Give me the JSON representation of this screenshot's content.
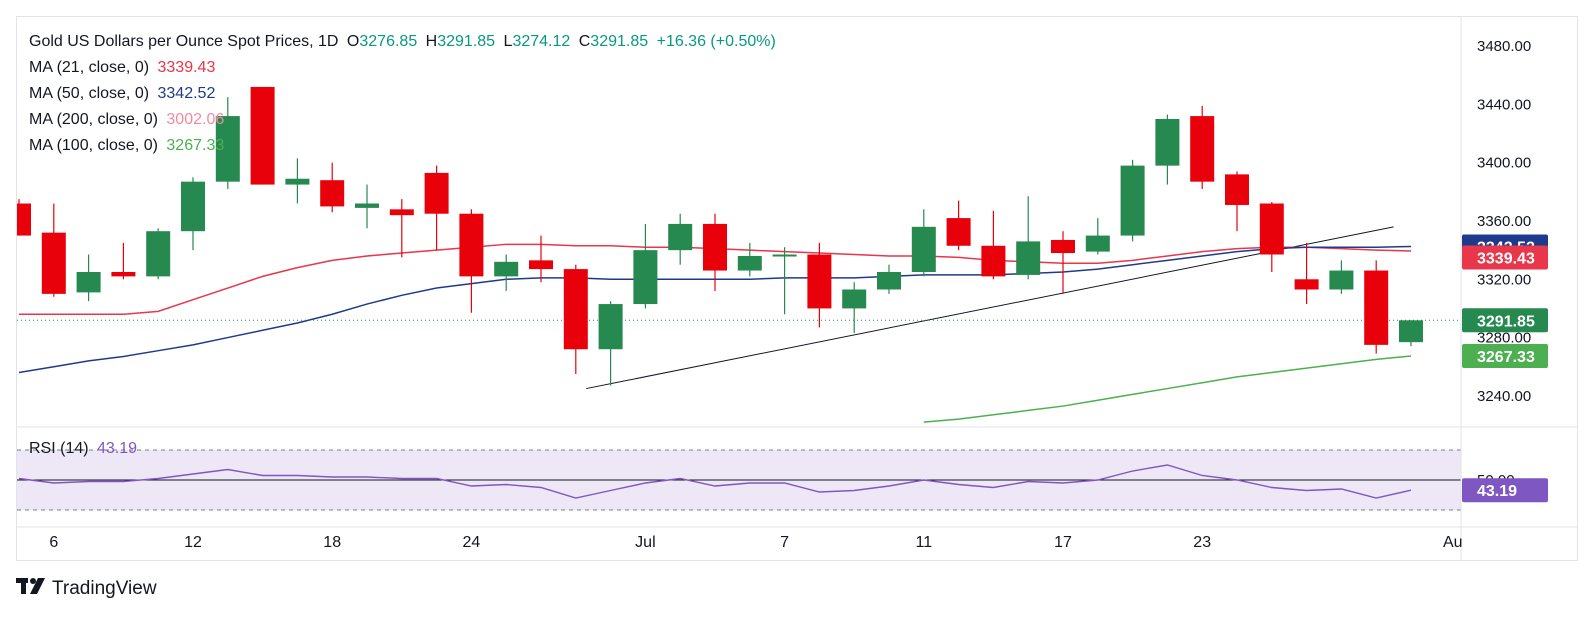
{
  "legend": {
    "symbol": "Gold US Dollars per Ounce Spot Prices, 1D",
    "open_label": "O",
    "open": "3276.85",
    "high_label": "H",
    "high": "3291.85",
    "low_label": "L",
    "low": "3274.12",
    "close_label": "C",
    "close": "3291.85",
    "change": "+16.36 (+0.50%)",
    "ma21_label": "MA (21, close, 0)",
    "ma21_value": "3339.43",
    "ma50_label": "MA (50, close, 0)",
    "ma50_value": "3342.52",
    "ma200_label": "MA (200, close, 0)",
    "ma200_value": "3002.06",
    "ma100_label": "MA (100, close, 0)",
    "ma100_value": "3267.33"
  },
  "rsi_legend": {
    "label": "RSI (14)",
    "value": "43.19"
  },
  "branding": {
    "name": "TradingView"
  },
  "colors": {
    "up": "#26894f",
    "down": "#e8000b",
    "ma21": "#e8364a",
    "ma50": "#1e3a8c",
    "ma200": "#f28b9f",
    "ma100": "#4caf50",
    "rsi": "#7e57c2",
    "rsi_band": "#ede7f6",
    "last_price": "#26894f"
  },
  "chart_data": [
    {
      "type": "candlestick",
      "title": "Gold US Dollars per Ounce Spot Prices, 1D",
      "ylim": [
        3220,
        3500
      ],
      "y_ticks": [
        "3480.00",
        "3440.00",
        "3400.00",
        "3360.00",
        "3320.00",
        "3280.00",
        "3240.00"
      ],
      "x_labels": [
        "6",
        "12",
        "18",
        "24",
        "Jul",
        "7",
        "11",
        "17",
        "23",
        "Au"
      ],
      "grid": false,
      "candles": [
        {
          "date": "Jun 5",
          "o": 3372,
          "h": 3375,
          "l": 3350,
          "c": 3350
        },
        {
          "date": "Jun 6",
          "o": 3352,
          "h": 3372,
          "l": 3308,
          "c": 3310
        },
        {
          "date": "Jun 9",
          "o": 3311,
          "h": 3337,
          "l": 3305,
          "c": 3325
        },
        {
          "date": "Jun 10",
          "o": 3325,
          "h": 3345,
          "l": 3320,
          "c": 3322
        },
        {
          "date": "Jun 11",
          "o": 3322,
          "h": 3355,
          "l": 3320,
          "c": 3353
        },
        {
          "date": "Jun 12",
          "o": 3353,
          "h": 3390,
          "l": 3340,
          "c": 3387
        },
        {
          "date": "Jun 13",
          "o": 3387,
          "h": 3445,
          "l": 3382,
          "c": 3432
        },
        {
          "date": "Jun 16",
          "o": 3452,
          "h": 3452,
          "l": 3385,
          "c": 3385
        },
        {
          "date": "Jun 17",
          "o": 3385,
          "h": 3403,
          "l": 3372,
          "c": 3389
        },
        {
          "date": "Jun 18",
          "o": 3388,
          "h": 3400,
          "l": 3366,
          "c": 3370
        },
        {
          "date": "Jun 19",
          "o": 3369,
          "h": 3385,
          "l": 3355,
          "c": 3372
        },
        {
          "date": "Jun 20",
          "o": 3368,
          "h": 3375,
          "l": 3335,
          "c": 3364
        },
        {
          "date": "Jun 23",
          "o": 3393,
          "h": 3398,
          "l": 3340,
          "c": 3365
        },
        {
          "date": "Jun 24",
          "o": 3365,
          "h": 3368,
          "l": 3297,
          "c": 3322
        },
        {
          "date": "Jun 25",
          "o": 3322,
          "h": 3337,
          "l": 3312,
          "c": 3332
        },
        {
          "date": "Jun 26",
          "o": 3333,
          "h": 3350,
          "l": 3318,
          "c": 3327
        },
        {
          "date": "Jun 27",
          "o": 3327,
          "h": 3330,
          "l": 3255,
          "c": 3272
        },
        {
          "date": "Jun 30",
          "o": 3272,
          "h": 3305,
          "l": 3247,
          "c": 3303
        },
        {
          "date": "Jul 1",
          "o": 3303,
          "h": 3358,
          "l": 3300,
          "c": 3340
        },
        {
          "date": "Jul 2",
          "o": 3340,
          "h": 3365,
          "l": 3330,
          "c": 3358
        },
        {
          "date": "Jul 3",
          "o": 3358,
          "h": 3365,
          "l": 3312,
          "c": 3326
        },
        {
          "date": "Jul 4",
          "o": 3326,
          "h": 3345,
          "l": 3322,
          "c": 3336
        },
        {
          "date": "Jul 7",
          "o": 3337,
          "h": 3342,
          "l": 3296,
          "c": 3337
        },
        {
          "date": "Jul 8",
          "o": 3337,
          "h": 3345,
          "l": 3287,
          "c": 3300
        },
        {
          "date": "Jul 9",
          "o": 3300,
          "h": 3318,
          "l": 3283,
          "c": 3313
        },
        {
          "date": "Jul 10",
          "o": 3313,
          "h": 3330,
          "l": 3310,
          "c": 3325
        },
        {
          "date": "Jul 11",
          "o": 3325,
          "h": 3368,
          "l": 3322,
          "c": 3356
        },
        {
          "date": "Jul 14",
          "o": 3362,
          "h": 3374,
          "l": 3340,
          "c": 3343
        },
        {
          "date": "Jul 15",
          "o": 3343,
          "h": 3367,
          "l": 3320,
          "c": 3322
        },
        {
          "date": "Jul 16",
          "o": 3323,
          "h": 3377,
          "l": 3320,
          "c": 3346
        },
        {
          "date": "Jul 17",
          "o": 3347,
          "h": 3353,
          "l": 3310,
          "c": 3338
        },
        {
          "date": "Jul 18",
          "o": 3339,
          "h": 3362,
          "l": 3337,
          "c": 3350
        },
        {
          "date": "Jul 21",
          "o": 3350,
          "h": 3402,
          "l": 3346,
          "c": 3398
        },
        {
          "date": "Jul 22",
          "o": 3398,
          "h": 3433,
          "l": 3385,
          "c": 3430
        },
        {
          "date": "Jul 23",
          "o": 3432,
          "h": 3439,
          "l": 3382,
          "c": 3387
        },
        {
          "date": "Jul 24",
          "o": 3392,
          "h": 3394,
          "l": 3353,
          "c": 3371
        },
        {
          "date": "Jul 25",
          "o": 3372,
          "h": 3373,
          "l": 3325,
          "c": 3337
        },
        {
          "date": "Jul 28",
          "o": 3320,
          "h": 3345,
          "l": 3303,
          "c": 3313
        },
        {
          "date": "Jul 29",
          "o": 3313,
          "h": 3333,
          "l": 3310,
          "c": 3326
        },
        {
          "date": "Jul 30",
          "o": 3326,
          "h": 3333,
          "l": 3269,
          "c": 3275
        },
        {
          "date": "Jul 31",
          "o": 3276.85,
          "h": 3291.85,
          "l": 3274.12,
          "c": 3291.85
        }
      ],
      "ma21": [
        3296,
        3296,
        3296,
        3296,
        3298,
        3306,
        3314,
        3322,
        3328,
        3333,
        3336,
        3338,
        3340,
        3342,
        3344,
        3344,
        3343,
        3343,
        3342,
        3342,
        3341,
        3340,
        3339,
        3338,
        3337,
        3336,
        3336,
        3335,
        3333,
        3332,
        3331,
        3331,
        3333,
        3336,
        3339,
        3341,
        3342,
        3342,
        3341,
        3340,
        3339.43
      ],
      "ma50": [
        3256,
        3260,
        3264,
        3267,
        3271,
        3275,
        3280,
        3285,
        3290,
        3296,
        3303,
        3309,
        3314,
        3317,
        3320,
        3321,
        3321,
        3320,
        3320,
        3320,
        3320,
        3320,
        3321,
        3321,
        3321,
        3322,
        3323,
        3323,
        3323,
        3324,
        3325,
        3327,
        3330,
        3333,
        3336,
        3339,
        3341,
        3342,
        3342,
        3342,
        3342.52
      ],
      "ma100": [
        null,
        null,
        null,
        null,
        null,
        null,
        null,
        null,
        null,
        null,
        null,
        null,
        null,
        null,
        null,
        null,
        null,
        null,
        null,
        null,
        null,
        null,
        null,
        null,
        null,
        null,
        3222,
        3224,
        3227,
        3230,
        3233,
        3237,
        3241,
        3245,
        3249,
        3253,
        3256,
        3259,
        3262,
        3265,
        3267.33
      ]
    },
    {
      "type": "line",
      "title": "RSI (14)",
      "ylim": [
        20,
        80
      ],
      "y_ticks": [
        "50.00"
      ],
      "bands": [
        30,
        70
      ],
      "values": [
        51,
        48,
        49,
        49,
        51,
        54,
        57,
        53,
        53,
        52,
        52,
        51,
        51,
        46,
        47,
        45,
        38,
        43,
        48,
        51,
        46,
        48,
        48,
        42,
        43,
        46,
        50,
        47,
        45,
        49,
        48,
        50,
        56,
        60,
        53,
        50,
        45,
        43,
        44,
        38,
        43.19
      ]
    }
  ]
}
